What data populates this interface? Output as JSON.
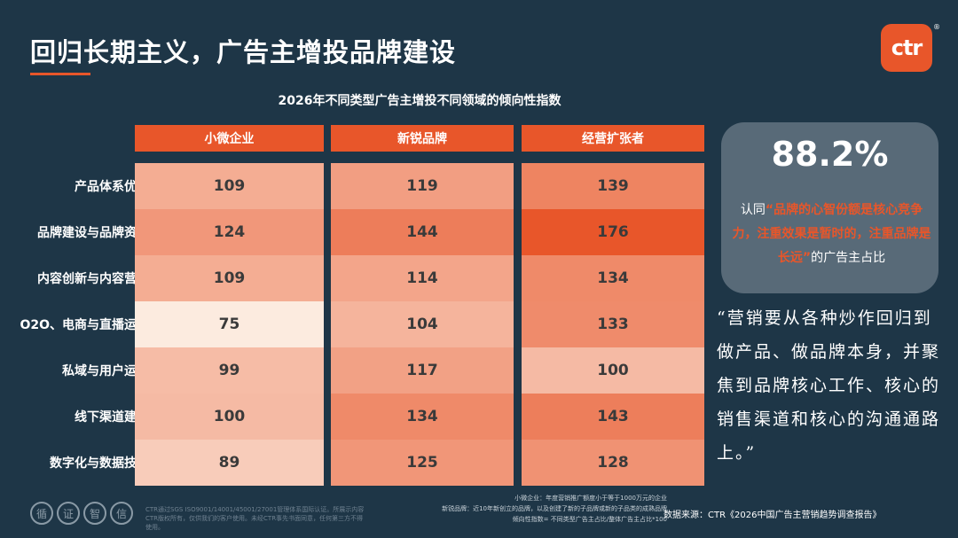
{
  "title": "回归长期主义，广告主增投品牌建设",
  "logo": {
    "text": "ctr",
    "reg": "®"
  },
  "chart_data": {
    "type": "heatmap",
    "title": "2026年不同类型广告主增投不同领域的倾向性指数",
    "columns": [
      "小微企业",
      "新锐品牌",
      "经营扩张者"
    ],
    "rows": [
      "产品体系优",
      "品牌建设与品牌资",
      "内容创新与内容营",
      "O2O、电商与直播运",
      "私域与用户运",
      "线下渠道建",
      "数字化与数据技"
    ],
    "values": [
      [
        109,
        119,
        139
      ],
      [
        124,
        144,
        176
      ],
      [
        109,
        114,
        134
      ],
      [
        75,
        104,
        133
      ],
      [
        99,
        117,
        100
      ],
      [
        100,
        134,
        143
      ],
      [
        89,
        125,
        128
      ]
    ],
    "colors": {
      "header": "#e8562a",
      "low": "#fcebdf",
      "high": "#e8562a"
    }
  },
  "stat": {
    "value": "88.2%",
    "prefix": "认同",
    "highlight": "“品牌的心智份额是核心竞争力，注重效果是暂时的，注重品牌是长远”",
    "suffix": "的广告主占比"
  },
  "quote": "“营销要从各种炒作回归到做产品、做品牌本身，并聚焦到品牌核心工作、核心的销售渠道和核心的沟通通路上。”",
  "seals": [
    "循",
    "证",
    "智",
    "信"
  ],
  "cert": "CTR通过SGS ISO9001/14001/45001/27001管理体系国际认证。所展示内容CTR版权所有，仅供我们的客户使用。未经CTR事先书面同意，任何第三方不得使用。",
  "notes": {
    "line1": "小微企业：年度营销推广额度小于等于1000万元的企业",
    "line2": "新锐品牌：近10年新创立的品牌，以及创建了新的子品牌或新的子品类的成熟品牌",
    "line3": "倾向性指数= 不同类型广告主占比/整体广告主占比*100"
  },
  "source": "数据来源：CTR《2026中国广告主营销趋势调查报告》"
}
